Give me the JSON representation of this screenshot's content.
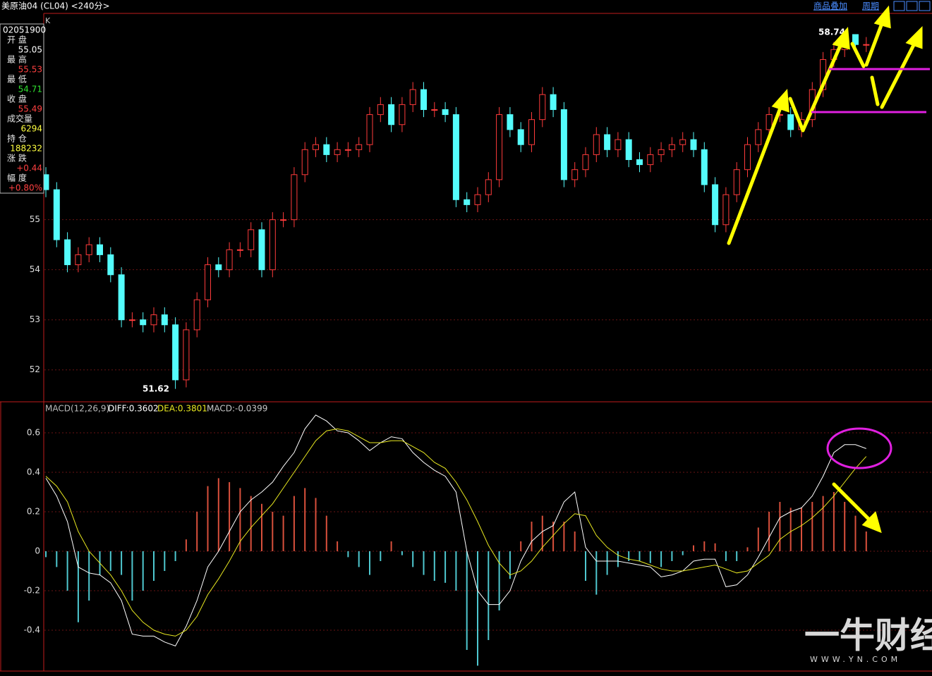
{
  "header": {
    "title": "美原油04 (CL04) <240分>",
    "overlay": "商品叠加",
    "period": "周期"
  },
  "info_panel": {
    "time": "02051900",
    "rows": [
      {
        "label": "开 盘",
        "value": "55.05"
      },
      {
        "label": "最 高",
        "value": "55.53"
      },
      {
        "label": "最 低",
        "value": "54.71"
      },
      {
        "label": "收 盘",
        "value": "55.49"
      },
      {
        "label": "成交量",
        "value": "6294"
      },
      {
        "label": "持 仓",
        "value": "188232"
      },
      {
        "label": "涨 跌",
        "value": "+0.44"
      },
      {
        "label": "幅 度",
        "value": "+0.80%"
      }
    ]
  },
  "watermark": {
    "brand": "一牛财经",
    "url": "WWW.YN.COM"
  },
  "chart_data": [
    {
      "type": "candlestick",
      "title": "K",
      "annotations": [
        "58.74",
        "51.62"
      ],
      "open": [
        55.9,
        55.6,
        54.6,
        54.1,
        54.3,
        54.5,
        54.3,
        53.9,
        53.0,
        53.0,
        52.9,
        53.1,
        52.9,
        51.8,
        52.8,
        53.4,
        54.1,
        54.0,
        54.4,
        54.4,
        54.8,
        54.0,
        55.0,
        55.0,
        55.9,
        56.4,
        56.5,
        56.3,
        56.4,
        56.4,
        56.5,
        57.1,
        57.3,
        56.9,
        57.3,
        57.6,
        57.2,
        57.2,
        57.1,
        55.4,
        55.3,
        55.5,
        55.8,
        57.1,
        56.8,
        56.5,
        57.0,
        57.5,
        57.2,
        55.8,
        56.0,
        56.3,
        56.7,
        56.4,
        56.6,
        56.2,
        56.1,
        56.3,
        56.4,
        56.5,
        56.6,
        56.4,
        55.7,
        54.9,
        55.5,
        56.0,
        56.5,
        56.8,
        57.1,
        57.1,
        56.8,
        57.0,
        57.6,
        58.2,
        58.4,
        58.7,
        58.5
      ],
      "high": [
        56.05,
        55.75,
        54.75,
        54.45,
        54.65,
        54.65,
        54.45,
        54.05,
        53.15,
        53.15,
        53.25,
        53.25,
        53.05,
        52.95,
        53.55,
        54.25,
        54.25,
        54.55,
        54.55,
        54.95,
        54.95,
        55.15,
        55.15,
        56.05,
        56.55,
        56.65,
        56.65,
        56.55,
        56.55,
        56.65,
        57.25,
        57.45,
        57.45,
        57.45,
        57.75,
        57.75,
        57.35,
        57.35,
        57.25,
        55.55,
        55.65,
        55.95,
        57.25,
        57.25,
        56.95,
        57.15,
        57.65,
        57.65,
        57.35,
        56.15,
        56.45,
        56.85,
        56.85,
        56.75,
        56.75,
        56.35,
        56.45,
        56.55,
        56.65,
        56.75,
        56.75,
        56.55,
        55.85,
        55.65,
        56.15,
        56.65,
        56.95,
        57.25,
        57.25,
        57.25,
        57.15,
        57.75,
        58.35,
        58.55,
        58.74,
        58.7,
        58.65
      ],
      "low": [
        55.45,
        54.45,
        53.95,
        53.95,
        54.15,
        54.15,
        53.75,
        52.85,
        52.85,
        52.75,
        52.75,
        52.75,
        51.62,
        51.65,
        52.65,
        53.25,
        53.85,
        53.85,
        54.25,
        54.25,
        53.85,
        53.85,
        54.85,
        54.85,
        55.75,
        56.25,
        56.15,
        56.15,
        56.25,
        56.25,
        56.35,
        56.95,
        56.75,
        56.75,
        57.15,
        57.05,
        57.05,
        56.95,
        55.25,
        55.15,
        55.15,
        55.35,
        55.65,
        56.65,
        56.35,
        56.35,
        56.85,
        57.05,
        55.65,
        55.65,
        55.85,
        56.15,
        56.25,
        56.25,
        56.05,
        55.95,
        55.95,
        56.15,
        56.25,
        56.35,
        56.25,
        55.55,
        54.75,
        54.75,
        55.35,
        55.85,
        56.35,
        56.65,
        56.95,
        56.65,
        56.65,
        56.85,
        57.45,
        58.05,
        58.25,
        58.35,
        58.35
      ],
      "close": [
        55.6,
        54.6,
        54.1,
        54.3,
        54.5,
        54.3,
        53.9,
        53.0,
        53.0,
        52.9,
        53.1,
        52.9,
        51.8,
        52.8,
        53.4,
        54.1,
        54.0,
        54.4,
        54.4,
        54.8,
        54.0,
        55.0,
        55.0,
        55.9,
        56.4,
        56.5,
        56.3,
        56.4,
        56.4,
        56.5,
        57.1,
        57.3,
        56.9,
        57.3,
        57.6,
        57.2,
        57.2,
        57.1,
        55.4,
        55.3,
        55.5,
        55.8,
        57.1,
        56.8,
        56.5,
        57.0,
        57.5,
        57.2,
        55.8,
        56.0,
        56.3,
        56.7,
        56.4,
        56.6,
        56.2,
        56.1,
        56.3,
        56.4,
        56.5,
        56.6,
        56.4,
        55.7,
        54.9,
        55.5,
        56.0,
        56.5,
        56.8,
        57.1,
        57.1,
        56.8,
        57.0,
        57.6,
        58.2,
        58.4,
        58.7,
        58.5,
        58.5
      ],
      "up_color": "#ff3b3b",
      "down_color": "#54fcfc",
      "ylim": [
        51.39,
        59.08
      ],
      "yticks": [
        52,
        53,
        54,
        55
      ],
      "grid": true
    },
    {
      "type": "macd",
      "title": "MACD(12,26,9)",
      "series": [
        {
          "name": "DIFF:0.3602",
          "color": "#ffffff",
          "values": [
            0.37,
            0.28,
            0.15,
            -0.08,
            -0.11,
            -0.12,
            -0.16,
            -0.25,
            -0.42,
            -0.43,
            -0.43,
            -0.46,
            -0.48,
            -0.38,
            -0.25,
            -0.08,
            0.0,
            0.1,
            0.2,
            0.26,
            0.3,
            0.35,
            0.43,
            0.5,
            0.62,
            0.69,
            0.66,
            0.61,
            0.6,
            0.56,
            0.51,
            0.55,
            0.58,
            0.57,
            0.5,
            0.45,
            0.41,
            0.38,
            0.3,
            0.0,
            -0.2,
            -0.27,
            -0.27,
            -0.2,
            -0.05,
            0.05,
            0.1,
            0.13,
            0.25,
            0.3,
            0.02,
            -0.05,
            -0.05,
            -0.05,
            -0.06,
            -0.07,
            -0.08,
            -0.13,
            -0.12,
            -0.1,
            -0.05,
            -0.04,
            -0.04,
            -0.18,
            -0.17,
            -0.12,
            -0.03,
            0.07,
            0.17,
            0.2,
            0.22,
            0.28,
            0.38,
            0.5,
            0.54,
            0.54,
            0.52
          ]
        },
        {
          "name": "DEA:0.3801",
          "color": "#e8e820",
          "values": [
            0.38,
            0.33,
            0.25,
            0.1,
            0.0,
            -0.06,
            -0.12,
            -0.2,
            -0.3,
            -0.36,
            -0.4,
            -0.42,
            -0.43,
            -0.4,
            -0.33,
            -0.22,
            -0.14,
            -0.05,
            0.05,
            0.12,
            0.18,
            0.24,
            0.32,
            0.4,
            0.48,
            0.56,
            0.61,
            0.62,
            0.61,
            0.58,
            0.55,
            0.55,
            0.56,
            0.56,
            0.53,
            0.5,
            0.45,
            0.42,
            0.35,
            0.26,
            0.15,
            0.03,
            -0.06,
            -0.12,
            -0.1,
            -0.05,
            0.02,
            0.08,
            0.14,
            0.19,
            0.18,
            0.08,
            0.02,
            -0.02,
            -0.04,
            -0.05,
            -0.07,
            -0.09,
            -0.1,
            -0.1,
            -0.09,
            -0.08,
            -0.07,
            -0.09,
            -0.11,
            -0.1,
            -0.06,
            -0.02,
            0.06,
            0.1,
            0.13,
            0.17,
            0.22,
            0.28,
            0.35,
            0.42,
            0.48
          ]
        },
        {
          "name": "MACD:-0.0399",
          "color": "#c8c8c8",
          "values": [
            -0.03,
            -0.08,
            -0.2,
            -0.36,
            -0.25,
            -0.12,
            -0.1,
            -0.12,
            -0.25,
            -0.2,
            -0.15,
            -0.1,
            -0.05,
            0.06,
            0.2,
            0.33,
            0.37,
            0.35,
            0.32,
            0.28,
            0.24,
            0.2,
            0.18,
            0.28,
            0.32,
            0.27,
            0.18,
            0.05,
            -0.03,
            -0.08,
            -0.12,
            -0.05,
            0.05,
            -0.02,
            -0.08,
            -0.12,
            -0.15,
            -0.16,
            -0.2,
            -0.5,
            -0.58,
            -0.45,
            -0.3,
            -0.14,
            0.05,
            0.15,
            0.18,
            0.15,
            0.15,
            0.1,
            -0.15,
            -0.22,
            -0.12,
            -0.08,
            -0.05,
            -0.05,
            -0.06,
            -0.08,
            -0.05,
            -0.02,
            0.03,
            0.05,
            0.04,
            -0.05,
            -0.05,
            0.02,
            0.12,
            0.2,
            0.25,
            0.22,
            0.22,
            0.25,
            0.28,
            0.3,
            0.25,
            0.18,
            0.1
          ]
        }
      ],
      "hist_up_color": "#d9503c",
      "hist_down_color": "#4fc8d0",
      "ylim": [
        -0.6,
        0.75
      ],
      "yticks": [
        0.6,
        0.4,
        0.2,
        0,
        -0.2,
        -0.4
      ],
      "grid": true
    }
  ]
}
